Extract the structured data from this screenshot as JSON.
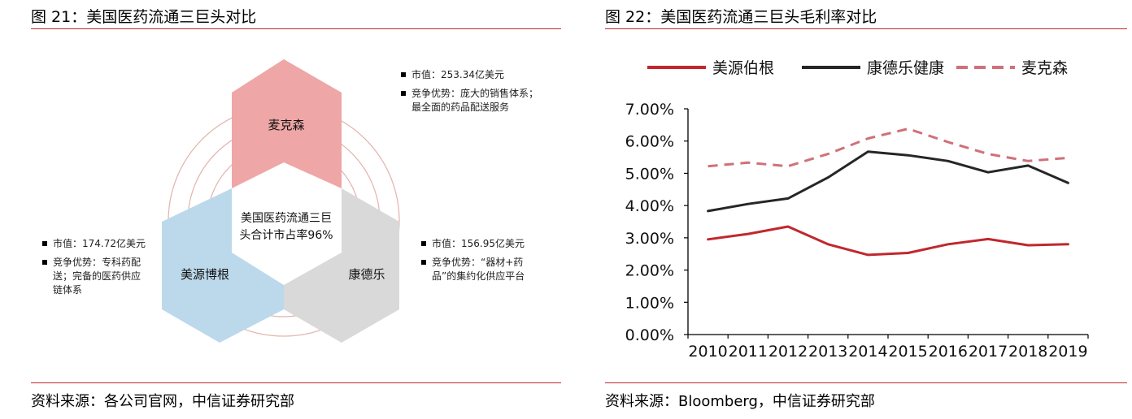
{
  "left": {
    "title": "图 21：美国医药流通三巨头对比",
    "source": "资料来源：各公司官网，中信证券研究部",
    "center_text": "美国医药流通三巨\n头合计市占率96%",
    "companies": [
      {
        "name": "麦克森",
        "color": "#efa6a6",
        "bullets": [
          "市值：253.34亿美元",
          "竞争优势：庞大的销售体系；\n最全面的药品配送服务"
        ]
      },
      {
        "name": "美源博根",
        "color": "#bcd9ec",
        "bullets": [
          "市值：174.72亿美元",
          "竞争优势：专科药配\n送；完备的医药供应\n链体系"
        ]
      },
      {
        "name": "康德乐",
        "color": "#d9d9d9",
        "bullets": [
          "市值：156.95亿美元",
          "竞争优势：“器材+药\n品”的集约化供应平台"
        ]
      }
    ]
  },
  "right": {
    "title": "图 22：美国医药流通三巨头毛利率对比",
    "source": "资料来源：Bloomberg，中信证券研究部"
  },
  "chart_data": {
    "type": "line",
    "x": [
      "2010",
      "2011",
      "2012",
      "2013",
      "2014",
      "2015",
      "2016",
      "2017",
      "2018",
      "2019"
    ],
    "yticks": [
      "0.00%",
      "1.00%",
      "2.00%",
      "3.00%",
      "4.00%",
      "5.00%",
      "6.00%",
      "7.00%"
    ],
    "ylim": [
      0,
      7
    ],
    "grid": false,
    "legend_position": "top",
    "series": [
      {
        "name": "美源伯根",
        "color": "#c0282d",
        "style": "solid",
        "values": [
          2.95,
          3.12,
          3.35,
          2.8,
          2.47,
          2.53,
          2.8,
          2.96,
          2.77,
          2.8
        ]
      },
      {
        "name": "康德乐健康",
        "color": "#262626",
        "style": "solid",
        "values": [
          3.83,
          4.05,
          4.22,
          4.87,
          5.67,
          5.56,
          5.38,
          5.03,
          5.24,
          4.7
        ]
      },
      {
        "name": "麦克森",
        "color": "#d0707a",
        "style": "dashed",
        "values": [
          5.22,
          5.33,
          5.22,
          5.6,
          6.08,
          6.38,
          5.97,
          5.6,
          5.38,
          5.48
        ]
      }
    ]
  }
}
